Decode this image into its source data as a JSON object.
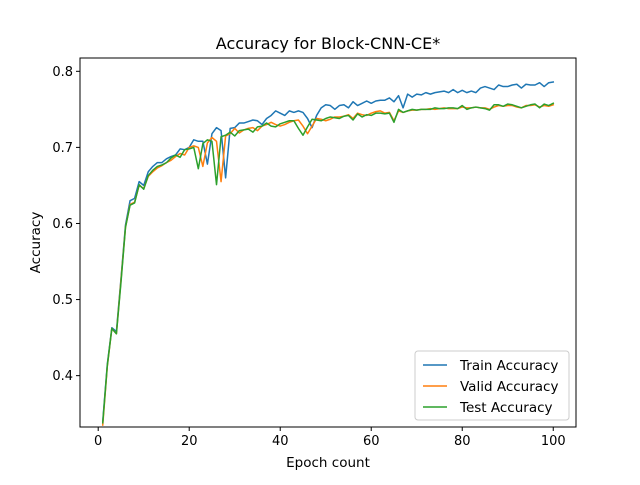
{
  "chart_data": {
    "type": "line",
    "title": "Accuracy for Block-CNN-CE*",
    "xlabel": "Epoch count",
    "ylabel": "Accuracy",
    "xlim": [
      -4,
      105
    ],
    "ylim": [
      0.3325,
      0.8175
    ],
    "xticks": [
      0,
      20,
      40,
      60,
      80,
      100
    ],
    "yticks": [
      0.4,
      0.5,
      0.6,
      0.7,
      0.8
    ],
    "x_tick_labels": [
      "0",
      "20",
      "40",
      "60",
      "80",
      "100"
    ],
    "y_tick_labels": [
      "0.4",
      "0.5",
      "0.6",
      "0.7",
      "0.8"
    ],
    "grid": false,
    "legend_position": "lower-right",
    "x": [
      1,
      2,
      3,
      4,
      5,
      6,
      7,
      8,
      9,
      10,
      11,
      12,
      13,
      14,
      15,
      16,
      17,
      18,
      19,
      20,
      21,
      22,
      23,
      24,
      25,
      26,
      27,
      28,
      29,
      30,
      31,
      32,
      33,
      34,
      35,
      36,
      37,
      38,
      39,
      40,
      41,
      42,
      43,
      44,
      45,
      46,
      47,
      48,
      49,
      50,
      51,
      52,
      53,
      54,
      55,
      56,
      57,
      58,
      59,
      60,
      61,
      62,
      63,
      64,
      65,
      66,
      67,
      68,
      69,
      70,
      71,
      72,
      73,
      74,
      75,
      76,
      77,
      78,
      79,
      80,
      81,
      82,
      83,
      84,
      85,
      86,
      87,
      88,
      89,
      90,
      91,
      92,
      93,
      94,
      95,
      96,
      97,
      98,
      99,
      100
    ],
    "series": [
      {
        "name": "Train Accuracy",
        "color": "#1f77b4",
        "values": [
          0.34,
          0.415,
          0.463,
          0.458,
          0.527,
          0.598,
          0.63,
          0.633,
          0.655,
          0.65,
          0.668,
          0.675,
          0.68,
          0.68,
          0.685,
          0.688,
          0.69,
          0.698,
          0.697,
          0.7,
          0.71,
          0.708,
          0.708,
          0.678,
          0.718,
          0.726,
          0.722,
          0.66,
          0.725,
          0.726,
          0.732,
          0.732,
          0.734,
          0.736,
          0.735,
          0.73,
          0.738,
          0.742,
          0.748,
          0.745,
          0.742,
          0.748,
          0.746,
          0.748,
          0.746,
          0.738,
          0.726,
          0.742,
          0.752,
          0.756,
          0.755,
          0.75,
          0.755,
          0.756,
          0.752,
          0.76,
          0.755,
          0.758,
          0.761,
          0.758,
          0.761,
          0.762,
          0.762,
          0.765,
          0.76,
          0.768,
          0.752,
          0.77,
          0.766,
          0.77,
          0.769,
          0.772,
          0.77,
          0.772,
          0.773,
          0.774,
          0.772,
          0.776,
          0.772,
          0.775,
          0.772,
          0.774,
          0.772,
          0.778,
          0.78,
          0.778,
          0.776,
          0.782,
          0.78,
          0.78,
          0.782,
          0.783,
          0.778,
          0.783,
          0.782,
          0.782,
          0.785,
          0.78,
          0.785,
          0.786
        ]
      },
      {
        "name": "Valid Accuracy",
        "color": "#ff7f0e",
        "values": [
          0.335,
          0.412,
          0.462,
          0.455,
          0.525,
          0.595,
          0.625,
          0.628,
          0.65,
          0.646,
          0.662,
          0.668,
          0.673,
          0.676,
          0.68,
          0.683,
          0.688,
          0.692,
          0.69,
          0.7,
          0.702,
          0.7,
          0.675,
          0.706,
          0.713,
          0.708,
          0.655,
          0.715,
          0.718,
          0.725,
          0.719,
          0.723,
          0.725,
          0.726,
          0.722,
          0.728,
          0.73,
          0.733,
          0.73,
          0.728,
          0.73,
          0.733,
          0.735,
          0.736,
          0.728,
          0.718,
          0.728,
          0.738,
          0.737,
          0.735,
          0.737,
          0.74,
          0.74,
          0.741,
          0.743,
          0.738,
          0.745,
          0.743,
          0.742,
          0.745,
          0.747,
          0.748,
          0.745,
          0.746,
          0.735,
          0.748,
          0.746,
          0.748,
          0.749,
          0.749,
          0.75,
          0.75,
          0.751,
          0.75,
          0.751,
          0.752,
          0.751,
          0.751,
          0.751,
          0.753,
          0.752,
          0.752,
          0.753,
          0.752,
          0.752,
          0.75,
          0.753,
          0.755,
          0.754,
          0.755,
          0.755,
          0.753,
          0.752,
          0.755,
          0.755,
          0.756,
          0.753,
          0.755,
          0.754,
          0.756
        ]
      },
      {
        "name": "Test Accuracy",
        "color": "#2ca02c",
        "values": [
          0.338,
          0.413,
          0.462,
          0.455,
          0.522,
          0.595,
          0.624,
          0.627,
          0.651,
          0.645,
          0.663,
          0.67,
          0.675,
          0.677,
          0.68,
          0.686,
          0.69,
          0.687,
          0.697,
          0.698,
          0.7,
          0.672,
          0.705,
          0.71,
          0.708,
          0.651,
          0.714,
          0.716,
          0.72,
          0.715,
          0.722,
          0.723,
          0.724,
          0.72,
          0.727,
          0.728,
          0.732,
          0.728,
          0.727,
          0.731,
          0.733,
          0.735,
          0.735,
          0.725,
          0.716,
          0.727,
          0.737,
          0.736,
          0.735,
          0.738,
          0.74,
          0.739,
          0.738,
          0.741,
          0.742,
          0.736,
          0.744,
          0.74,
          0.743,
          0.742,
          0.745,
          0.745,
          0.744,
          0.745,
          0.733,
          0.75,
          0.746,
          0.748,
          0.75,
          0.749,
          0.75,
          0.75,
          0.75,
          0.752,
          0.751,
          0.751,
          0.752,
          0.752,
          0.751,
          0.755,
          0.75,
          0.752,
          0.753,
          0.752,
          0.751,
          0.749,
          0.756,
          0.756,
          0.754,
          0.757,
          0.756,
          0.754,
          0.752,
          0.754,
          0.756,
          0.757,
          0.752,
          0.757,
          0.755,
          0.758
        ]
      }
    ]
  }
}
